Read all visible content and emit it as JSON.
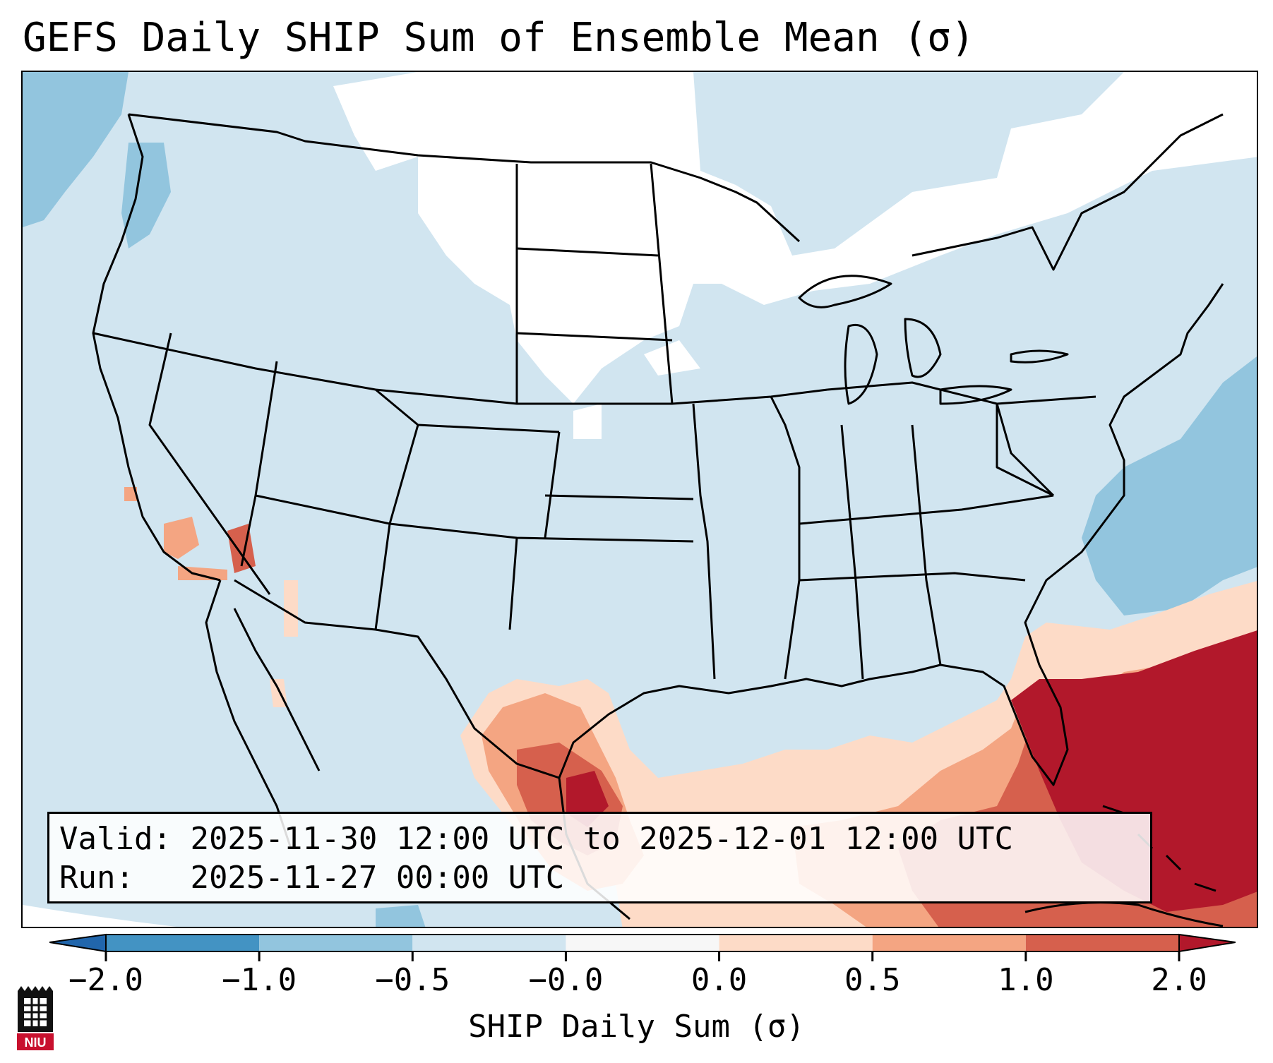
{
  "title": "GEFS Daily SHIP Sum of Ensemble Mean (σ)",
  "info": {
    "valid_label": "Valid:",
    "valid_value": "2025-11-30 12:00 UTC to 2025-12-01 12:00 UTC",
    "run_label": "Run:",
    "run_value": "2025-11-27 00:00 UTC"
  },
  "colorbar": {
    "label": "SHIP Daily Sum (σ)",
    "ticks": [
      "−2.0",
      "−1.0",
      "−0.5",
      "−0.0",
      "0.0",
      "0.5",
      "1.0",
      "2.0"
    ],
    "bins": [
      {
        "color": "#4393c3"
      },
      {
        "color": "#92c5de"
      },
      {
        "color": "#d1e5f0"
      },
      {
        "color": "#f7f7f7"
      },
      {
        "color": "#fddbc7"
      },
      {
        "color": "#f4a582"
      },
      {
        "color": "#d6604d"
      }
    ],
    "extend_low_color": "#2166ac",
    "extend_high_color": "#b2182b"
  },
  "map": {
    "projection": "Lambert Conformal (CONUS)",
    "background_color": "#d1e5f0",
    "neutral_color": "#ffffff",
    "regions_positive": [
      "South Texas",
      "Gulf of Mexico",
      "Florida",
      "Western Atlantic",
      "Southern California"
    ],
    "regions_negative_moderate": [
      "Pacific Northwest coast",
      "Western Atlantic east of Mid-Atlantic"
    ]
  },
  "logo": {
    "text": "NIU"
  }
}
